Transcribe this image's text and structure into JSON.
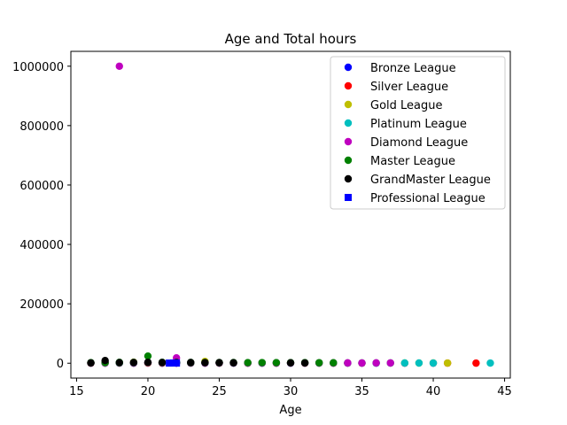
{
  "chart_data": {
    "type": "scatter",
    "title": "Age and Total hours",
    "xlabel": "Age",
    "ylabel": "",
    "xlim": [
      14.6,
      45.4
    ],
    "ylim": [
      -50000,
      1050000
    ],
    "xticks": [
      15,
      20,
      25,
      30,
      35,
      40,
      45
    ],
    "yticks": [
      0,
      200000,
      400000,
      600000,
      800000,
      1000000
    ],
    "xtick_labels": [
      "15",
      "20",
      "25",
      "30",
      "35",
      "40",
      "45"
    ],
    "ytick_labels": [
      "0",
      "200000",
      "400000",
      "600000",
      "800000",
      "1000000"
    ],
    "grid": false,
    "legend_position": "top-right",
    "series": [
      {
        "name": "Bronze League",
        "color": "#0000ff",
        "marker": "circle",
        "points": [
          [
            16,
            200
          ],
          [
            17,
            300
          ],
          [
            18,
            400
          ],
          [
            19,
            300
          ],
          [
            20,
            500
          ],
          [
            21,
            200
          ],
          [
            22,
            300
          ],
          [
            23,
            400
          ],
          [
            24,
            300
          ],
          [
            25,
            200
          ],
          [
            26,
            300
          ],
          [
            27,
            200
          ],
          [
            28,
            300
          ],
          [
            29,
            200
          ],
          [
            30,
            300
          ],
          [
            31,
            200
          ],
          [
            32,
            300
          ],
          [
            33,
            200
          ],
          [
            34,
            300
          ],
          [
            35,
            200
          ],
          [
            36,
            300
          ],
          [
            38,
            200
          ],
          [
            40,
            300
          ]
        ]
      },
      {
        "name": "Silver League",
        "color": "#ff0000",
        "marker": "circle",
        "points": [
          [
            16,
            400
          ],
          [
            17,
            500
          ],
          [
            18,
            600
          ],
          [
            19,
            500
          ],
          [
            20,
            700
          ],
          [
            21,
            400
          ],
          [
            22,
            500
          ],
          [
            23,
            600
          ],
          [
            24,
            500
          ],
          [
            25,
            400
          ],
          [
            26,
            500
          ],
          [
            27,
            400
          ],
          [
            28,
            500
          ],
          [
            29,
            400
          ],
          [
            30,
            500
          ],
          [
            31,
            400
          ],
          [
            32,
            500
          ],
          [
            33,
            400
          ],
          [
            34,
            500
          ],
          [
            35,
            400
          ],
          [
            37,
            500
          ],
          [
            41,
            400
          ],
          [
            43,
            300
          ]
        ]
      },
      {
        "name": "Gold League",
        "color": "#bfbf00",
        "marker": "circle",
        "points": [
          [
            16,
            800
          ],
          [
            17,
            900
          ],
          [
            18,
            1200
          ],
          [
            19,
            3500
          ],
          [
            20,
            1500
          ],
          [
            21,
            900
          ],
          [
            22,
            1000
          ],
          [
            23,
            1200
          ],
          [
            24,
            6000
          ],
          [
            25,
            1000
          ],
          [
            26,
            900
          ],
          [
            27,
            800
          ],
          [
            28,
            900
          ],
          [
            29,
            800
          ],
          [
            30,
            900
          ],
          [
            31,
            800
          ],
          [
            32,
            700
          ],
          [
            33,
            800
          ],
          [
            34,
            700
          ],
          [
            35,
            800
          ],
          [
            36,
            700
          ],
          [
            37,
            800
          ],
          [
            38,
            700
          ],
          [
            39,
            600
          ],
          [
            40,
            700
          ],
          [
            41,
            600
          ]
        ]
      },
      {
        "name": "Platinum League",
        "color": "#00bfbf",
        "marker": "circle",
        "points": [
          [
            16,
            1000
          ],
          [
            17,
            1200
          ],
          [
            18,
            1500
          ],
          [
            19,
            1300
          ],
          [
            20,
            2000
          ],
          [
            21,
            1200
          ],
          [
            22,
            1400
          ],
          [
            23,
            1300
          ],
          [
            24,
            1200
          ],
          [
            25,
            1100
          ],
          [
            26,
            1000
          ],
          [
            27,
            1100
          ],
          [
            28,
            1000
          ],
          [
            29,
            900
          ],
          [
            30,
            1000
          ],
          [
            31,
            900
          ],
          [
            32,
            1000
          ],
          [
            33,
            900
          ],
          [
            34,
            800
          ],
          [
            35,
            900
          ],
          [
            36,
            800
          ],
          [
            37,
            700
          ],
          [
            38,
            800
          ],
          [
            39,
            700
          ],
          [
            40,
            600
          ],
          [
            44,
            500
          ]
        ]
      },
      {
        "name": "Diamond League",
        "color": "#bf00bf",
        "marker": "circle",
        "points": [
          [
            16,
            1500
          ],
          [
            17,
            1800
          ],
          [
            18,
            1000000
          ],
          [
            19,
            2000
          ],
          [
            20,
            2500
          ],
          [
            21,
            1800
          ],
          [
            22,
            18000
          ],
          [
            23,
            2000
          ],
          [
            24,
            1800
          ],
          [
            25,
            1600
          ],
          [
            26,
            1500
          ],
          [
            27,
            1400
          ],
          [
            28,
            1300
          ],
          [
            29,
            1400
          ],
          [
            30,
            1300
          ],
          [
            31,
            1200
          ],
          [
            32,
            1300
          ],
          [
            33,
            1200
          ],
          [
            34,
            1100
          ],
          [
            35,
            1000
          ],
          [
            36,
            1100
          ],
          [
            37,
            1000
          ]
        ]
      },
      {
        "name": "Master League",
        "color": "#008000",
        "marker": "circle",
        "points": [
          [
            16,
            2000
          ],
          [
            17,
            2500
          ],
          [
            18,
            3000
          ],
          [
            19,
            2800
          ],
          [
            20,
            24000
          ],
          [
            21,
            3000
          ],
          [
            22,
            2800
          ],
          [
            23,
            2600
          ],
          [
            24,
            2500
          ],
          [
            25,
            2400
          ],
          [
            26,
            2200
          ],
          [
            27,
            2000
          ],
          [
            28,
            2100
          ],
          [
            29,
            2000
          ],
          [
            30,
            1900
          ],
          [
            31,
            1800
          ],
          [
            32,
            1700
          ],
          [
            33,
            1600
          ]
        ]
      },
      {
        "name": "GrandMaster League",
        "color": "#000000",
        "marker": "circle",
        "points": [
          [
            16,
            1000
          ],
          [
            17,
            9000
          ],
          [
            18,
            2000
          ],
          [
            19,
            2500
          ],
          [
            20,
            3000
          ],
          [
            21,
            2500
          ],
          [
            22,
            2000
          ],
          [
            23,
            2200
          ],
          [
            24,
            2000
          ],
          [
            25,
            1800
          ],
          [
            26,
            1500
          ],
          [
            30,
            1200
          ],
          [
            31,
            1000
          ]
        ]
      },
      {
        "name": "Professional League",
        "color": "#0000ff",
        "marker": "square",
        "points": [
          [
            21.5,
            500
          ],
          [
            21.8,
            800
          ],
          [
            22,
            600
          ]
        ]
      }
    ]
  }
}
